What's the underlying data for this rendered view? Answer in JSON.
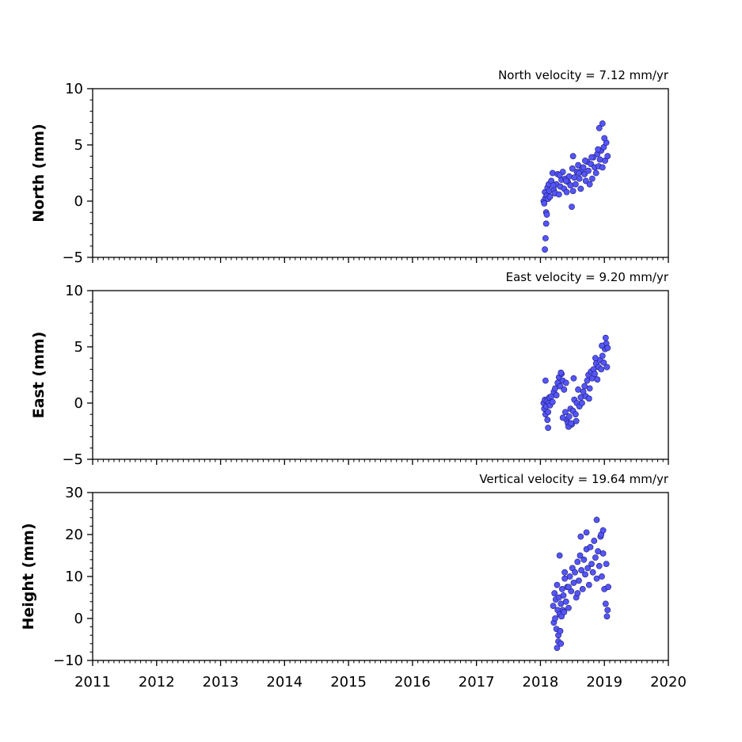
{
  "chart_data": [
    {
      "type": "scatter",
      "title": "North velocity = 7.12 mm/yr",
      "ylabel": "North (mm)",
      "xlim": [
        2011,
        2020
      ],
      "ylim": [
        -5,
        10
      ],
      "yticks": [
        "10",
        "5",
        "0",
        "−5"
      ],
      "xticks": [],
      "series": [
        {
          "x": [
            2018.05,
            2018.06,
            2018.07,
            2018.08,
            2018.09,
            2018.1,
            2018.11,
            2018.12,
            2018.13,
            2018.14,
            2018.15,
            2018.17,
            2018.19,
            2018.21,
            2018.23,
            2018.25,
            2018.27,
            2018.29,
            2018.31,
            2018.33,
            2018.35,
            2018.37,
            2018.39,
            2018.41,
            2018.43,
            2018.45,
            2018.47,
            2018.49,
            2018.51,
            2018.53,
            2018.55,
            2018.57,
            2018.59,
            2018.61,
            2018.63,
            2018.65,
            2018.67,
            2018.69,
            2018.71,
            2018.73,
            2018.75,
            2018.77,
            2018.79,
            2018.81,
            2018.83,
            2018.85,
            2018.87,
            2018.89,
            2018.91,
            2018.93,
            2018.95,
            2018.97,
            2018.99,
            2019.01,
            2019.03,
            2019.05,
            2018.07,
            2018.08,
            2018.09,
            2018.1,
            2018.2,
            2018.3,
            2018.4,
            2018.5,
            2018.6,
            2018.7,
            2018.8,
            2018.9,
            2019.0,
            2018.97,
            2018.92,
            2018.51
          ],
          "y": [
            0.0,
            -0.2,
            0.8,
            0.3,
            -1.0,
            0.5,
            1.2,
            0.2,
            1.5,
            0.9,
            0.4,
            1.8,
            2.5,
            1.0,
            0.7,
            1.5,
            2.4,
            0.6,
            1.3,
            1.9,
            2.6,
            1.1,
            2.0,
            0.8,
            1.7,
            2.2,
            1.4,
            -0.5,
            0.9,
            2.1,
            1.5,
            2.6,
            3.2,
            2.0,
            1.1,
            2.8,
            3.0,
            2.4,
            1.8,
            3.5,
            2.7,
            1.5,
            3.3,
            2.0,
            3.9,
            3.0,
            2.5,
            4.2,
            3.1,
            3.7,
            4.5,
            3.0,
            4.8,
            3.6,
            5.2,
            4.0,
            -4.3,
            -3.3,
            -2.0,
            -1.2,
            1.4,
            2.3,
            1.8,
            2.9,
            2.5,
            3.6,
            3.9,
            4.6,
            5.6,
            6.9,
            6.5,
            4.0
          ]
        }
      ]
    },
    {
      "type": "scatter",
      "title": "East velocity = 9.20 mm/yr",
      "ylabel": "East (mm)",
      "xlim": [
        2011,
        2020
      ],
      "ylim": [
        -5,
        10
      ],
      "yticks": [
        "10",
        "5",
        "0",
        "−5"
      ],
      "xticks": [],
      "series": [
        {
          "x": [
            2018.05,
            2018.06,
            2018.07,
            2018.08,
            2018.09,
            2018.1,
            2018.11,
            2018.12,
            2018.13,
            2018.14,
            2018.15,
            2018.17,
            2018.19,
            2018.21,
            2018.23,
            2018.25,
            2018.27,
            2018.29,
            2018.31,
            2018.33,
            2018.35,
            2018.37,
            2018.39,
            2018.41,
            2018.43,
            2018.45,
            2018.47,
            2018.49,
            2018.51,
            2018.53,
            2018.55,
            2018.57,
            2018.59,
            2018.61,
            2018.63,
            2018.65,
            2018.67,
            2018.69,
            2018.71,
            2018.73,
            2018.75,
            2018.77,
            2018.79,
            2018.81,
            2018.83,
            2018.85,
            2018.87,
            2018.89,
            2018.91,
            2018.93,
            2018.95,
            2018.97,
            2018.99,
            2019.01,
            2019.03,
            2019.05,
            2018.08,
            2018.12,
            2018.32,
            2018.35,
            2018.4,
            2018.44,
            2018.48,
            2018.52,
            2018.56,
            2018.76,
            2018.86,
            2018.96,
            2019.02,
            2019.04
          ],
          "y": [
            0.0,
            -0.5,
            0.3,
            -1.0,
            -0.3,
            0.2,
            -1.5,
            -0.8,
            0.0,
            0.5,
            -0.2,
            0.6,
            0.1,
            1.0,
            1.3,
            0.7,
            1.8,
            2.3,
            1.5,
            2.6,
            2.0,
            1.2,
            -0.8,
            -1.5,
            -1.8,
            -1.2,
            -0.5,
            -1.9,
            -0.7,
            0.3,
            -1.0,
            0.0,
            1.2,
            -0.3,
            0.5,
            0.0,
            1.0,
            1.5,
            0.6,
            2.0,
            2.5,
            1.3,
            2.8,
            2.2,
            3.0,
            2.6,
            3.5,
            2.1,
            3.2,
            3.8,
            3.0,
            4.2,
            3.6,
            4.8,
            5.3,
            4.9,
            2.0,
            -2.2,
            2.7,
            -1.3,
            1.8,
            -2.1,
            -1.8,
            2.2,
            -1.6,
            0.4,
            4.0,
            5.1,
            5.8,
            3.2
          ]
        }
      ]
    },
    {
      "type": "scatter",
      "title": "Vertical velocity = 19.64 mm/yr",
      "ylabel": "Height (mm)",
      "xlim": [
        2011,
        2020
      ],
      "ylim": [
        -10,
        30
      ],
      "yticks": [
        "30",
        "20",
        "10",
        "0",
        "−10"
      ],
      "xticks": [
        "2011",
        "2012",
        "2013",
        "2014",
        "2015",
        "2016",
        "2017",
        "2018",
        "2019",
        "2020"
      ],
      "series": [
        {
          "x": [
            2018.2,
            2018.21,
            2018.22,
            2018.23,
            2018.24,
            2018.25,
            2018.26,
            2018.27,
            2018.28,
            2018.29,
            2018.3,
            2018.31,
            2018.32,
            2018.33,
            2018.34,
            2018.35,
            2018.36,
            2018.37,
            2018.38,
            2018.4,
            2018.42,
            2018.44,
            2018.46,
            2018.48,
            2018.5,
            2018.52,
            2018.54,
            2018.56,
            2018.58,
            2018.6,
            2018.62,
            2018.64,
            2018.66,
            2018.68,
            2018.7,
            2018.72,
            2018.74,
            2018.76,
            2018.78,
            2018.8,
            2018.82,
            2018.84,
            2018.86,
            2018.88,
            2018.9,
            2018.92,
            2018.94,
            2018.96,
            2018.98,
            2019.0,
            2019.02,
            2019.04,
            2019.05,
            2018.26,
            2018.28,
            2018.3,
            2018.32,
            2018.38,
            2018.44,
            2018.63,
            2018.72,
            2018.88,
            2018.95,
            2019.03,
            2019.06,
            2018.98,
            2018.58
          ],
          "y": [
            3.0,
            -1.0,
            6.0,
            0.0,
            4.5,
            -2.5,
            8.0,
            2.0,
            -4.0,
            5.0,
            1.0,
            -3.0,
            3.5,
            0.5,
            7.0,
            2.0,
            5.5,
            1.5,
            9.5,
            4.0,
            7.5,
            2.5,
            10.0,
            6.5,
            12.0,
            8.5,
            11.0,
            5.0,
            13.5,
            9.0,
            15.0,
            11.5,
            7.0,
            14.0,
            10.5,
            16.5,
            12.0,
            8.0,
            17.0,
            13.0,
            11.0,
            18.5,
            14.5,
            9.5,
            16.0,
            12.5,
            19.5,
            10.0,
            15.5,
            7.0,
            3.5,
            0.5,
            2.0,
            -7.0,
            -5.5,
            15.0,
            -6.0,
            11.0,
            7.5,
            19.5,
            20.5,
            23.5,
            20.0,
            13.0,
            7.5,
            21.0,
            6.0
          ]
        }
      ]
    }
  ]
}
